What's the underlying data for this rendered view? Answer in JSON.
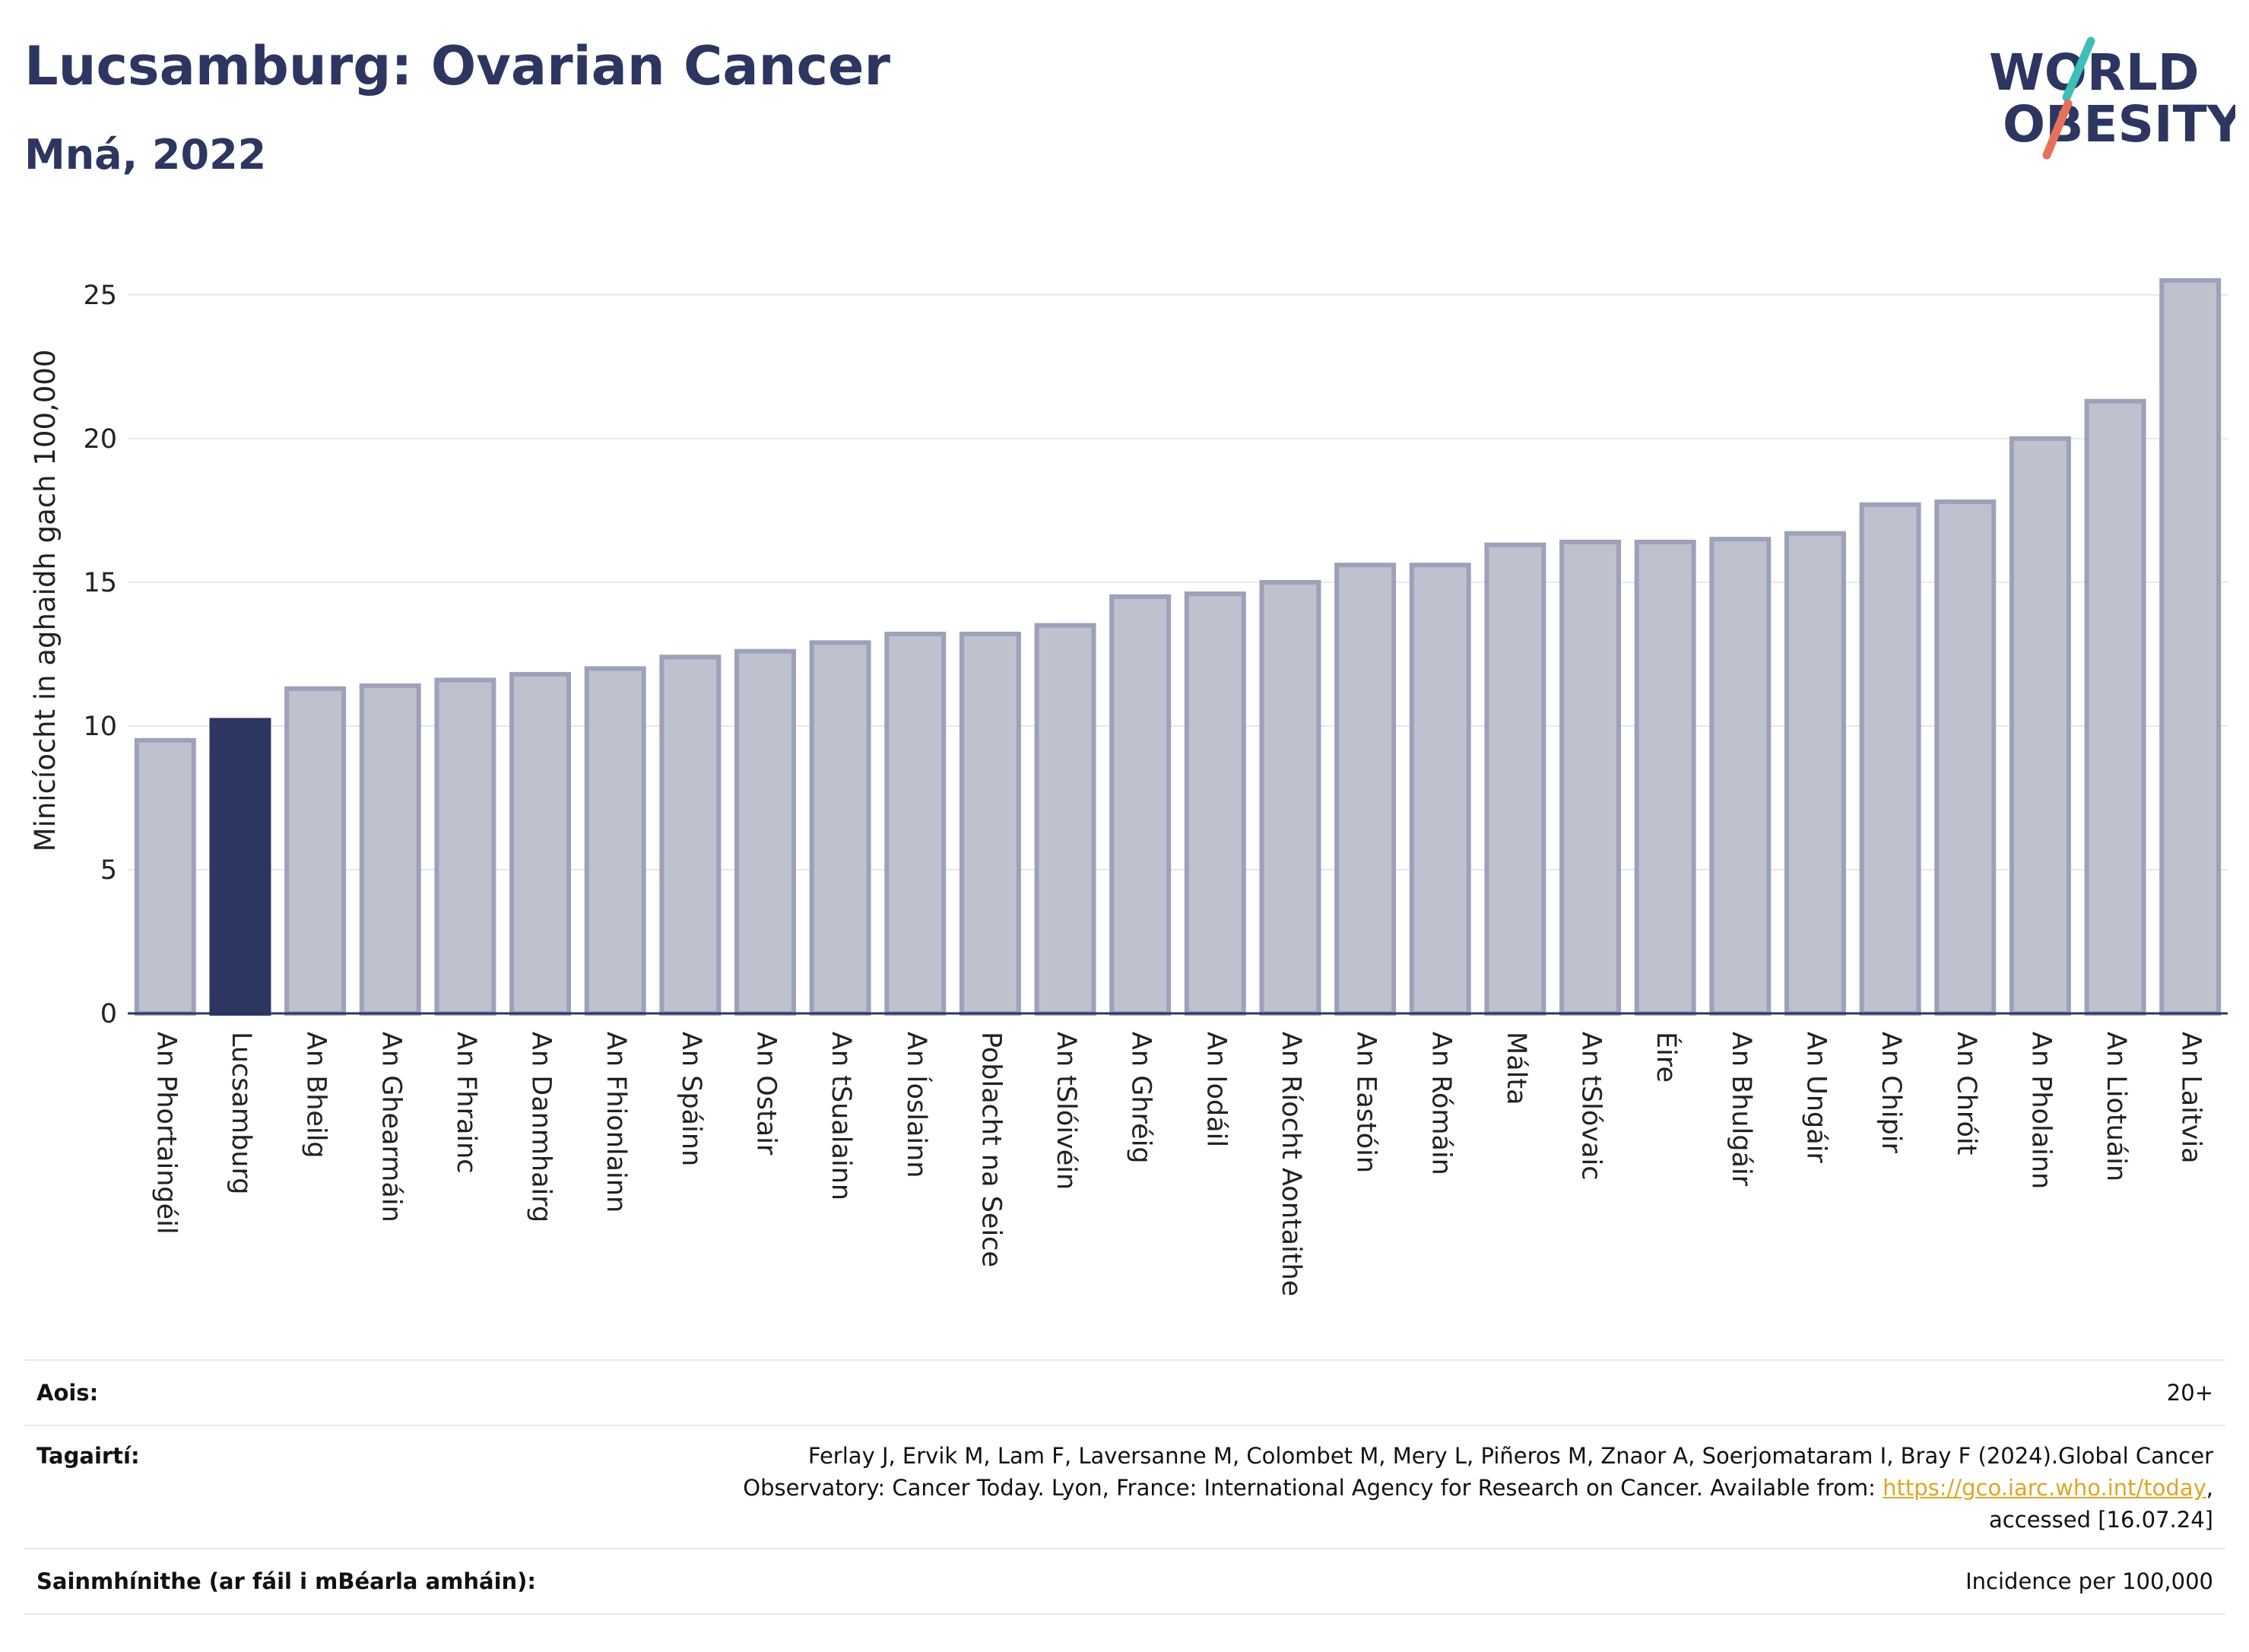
{
  "header": {
    "title": "Lucsamburg: Ovarian Cancer",
    "subtitle": "Mná, 2022"
  },
  "logo": {
    "line1": "WORLD",
    "line2": "OBESITY",
    "slash_colors": [
      "#3bbfb6",
      "#e8705a"
    ]
  },
  "chart_data": {
    "type": "bar",
    "ylabel": "Minicíocht in aghaidh gach 100,000",
    "xlabel": "",
    "ylim": [
      0,
      26
    ],
    "yticks": [
      0,
      5,
      10,
      15,
      20,
      25
    ],
    "grid": true,
    "highlight": "Lucsamburg",
    "colors": {
      "bar": "#bec1ce",
      "bar_edge": "#9da1b9",
      "highlight": "#2d3661"
    },
    "categories": [
      "An Phortaingéil",
      "Lucsamburg",
      "An Bheilg",
      "An Ghearmáin",
      "An Fhrainc",
      "An Danmhairg",
      "An Fhionlainn",
      "An Spáinn",
      "An Ostair",
      "An tSualainn",
      "An Íoslainn",
      "Poblacht na Seice",
      "An tSlóivéin",
      "An Ghréig",
      "An Iodáil",
      "An Ríocht Aontaithe",
      "An Eastóin",
      "An Rómáin",
      "Málta",
      "An tSlóvaic",
      "Éire",
      "An Bhulgáir",
      "An Ungáir",
      "An Chipir",
      "An Chróit",
      "An Pholainn",
      "An Liotuáin",
      "An Laitvia"
    ],
    "values": [
      9.5,
      10.2,
      11.3,
      11.4,
      11.6,
      11.8,
      12.0,
      12.4,
      12.6,
      12.9,
      13.2,
      13.2,
      13.5,
      14.5,
      14.6,
      15.0,
      15.6,
      15.6,
      16.3,
      16.4,
      16.4,
      16.5,
      16.7,
      17.7,
      17.8,
      20.0,
      21.3,
      25.5
    ]
  },
  "footer": {
    "age_label": "Aois:",
    "age_value": "20+",
    "ref_label": "Tagairtí:",
    "ref_line1": "Ferlay J, Ervik M, Lam F, Laversanne M, Colombet M, Mery L, Piñeros M, Znaor A, Soerjomataram I, Bray F (2024).Global Cancer",
    "ref_line2_pre": "Observatory: Cancer Today. Lyon, France: International Agency for Research on Cancer. Available from: ",
    "ref_link": "https://gco.iarc.who.int/today",
    "ref_line2_post": ",",
    "ref_line3": "accessed [16.07.24]",
    "def_label": "Sainmhínithe (ar fáil i mBéarla amháin):",
    "def_value": "Incidence per 100,000"
  }
}
